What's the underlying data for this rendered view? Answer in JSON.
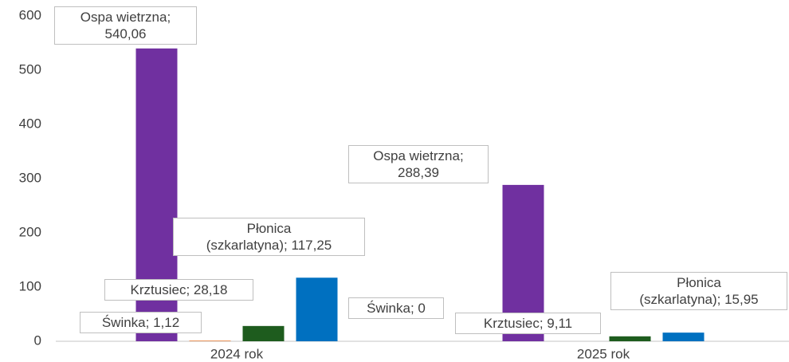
{
  "chart_data": {
    "type": "bar",
    "categories": [
      "2024 rok",
      "2025 rok"
    ],
    "series": [
      {
        "name": "Ospa wietrzna",
        "color": "#7030a0",
        "values": [
          540.06,
          288.39
        ],
        "value_labels": [
          "Ospa wietrzna;\n540,06",
          "Ospa wietrzna;\n288,39"
        ]
      },
      {
        "name": "Świnka",
        "color": "#ed7d31",
        "values": [
          1.12,
          0
        ],
        "value_labels": [
          "Świnka; 1,12",
          "Świnka; 0"
        ]
      },
      {
        "name": "Krztusiec",
        "color": "#1e5c1e",
        "values": [
          28.18,
          9.11
        ],
        "value_labels": [
          "Krztusiec; 28,18",
          "Krztusiec; 9,11"
        ]
      },
      {
        "name": "Płonica",
        "color": "#0070c0",
        "values": [
          117.25,
          15.95
        ],
        "value_labels": [
          "Płonica\n(szkarlatyna); 117,25",
          "Płonica\n(szkarlatyna); 15,95"
        ]
      }
    ],
    "ylim": [
      0,
      600
    ],
    "yticks": [
      0,
      100,
      200,
      300,
      400,
      500,
      600
    ],
    "grid": false
  }
}
